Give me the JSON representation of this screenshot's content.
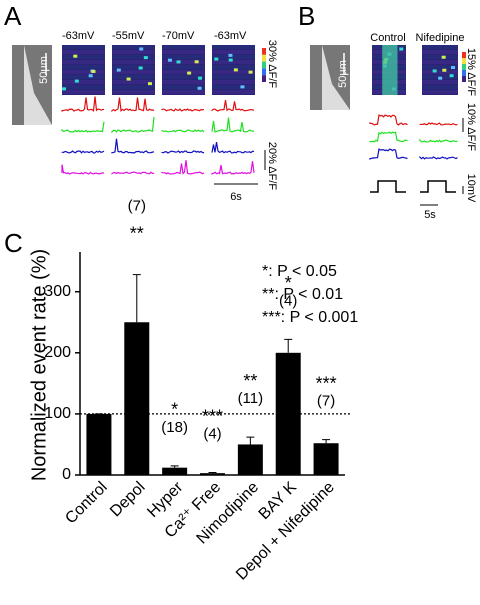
{
  "figure": {
    "panel_a": {
      "label": "A",
      "voltages": [
        "-63mV",
        "-55mV",
        "-70mV",
        "-63mV"
      ],
      "scale_um": "50µm",
      "color_scale": "30% ΔF/F",
      "trace_scale": "20% ΔF/F",
      "time_scale": "6s"
    },
    "panel_b": {
      "label": "B",
      "conditions": [
        "Control",
        "Nifedipine"
      ],
      "scale_um": "50µm",
      "color_scale": "15% ΔF/F",
      "trace_scale": "10% ΔF/F",
      "voltage_scale": "10mV",
      "time_scale": "5s"
    },
    "panel_c": {
      "label": "C"
    }
  },
  "chart_data": {
    "type": "bar",
    "y_label": "Normalized event rate (%)",
    "categories": [
      "Control",
      "Depol",
      "Hyper",
      "Ca²⁺ Free",
      "Nimodipine",
      "BAY K",
      "Depol + Nifedipine"
    ],
    "values": [
      100,
      250,
      12,
      3,
      50,
      200,
      52
    ],
    "errors": [
      0,
      78,
      3,
      1,
      12,
      22,
      6
    ],
    "n_labels": [
      null,
      "(7)",
      "(18)",
      "(4)",
      "(11)",
      "(4)",
      "(7)"
    ],
    "significance": [
      null,
      "**",
      "*",
      "***",
      "**",
      "*",
      "***"
    ],
    "legend": [
      "*: P < 0.05",
      "**: P < 0.01",
      "***: P < 0.001"
    ],
    "color": "#000000",
    "reference_line": 100,
    "ylim": [
      0,
      365
    ],
    "yticks": [
      0,
      100,
      200,
      300
    ]
  }
}
